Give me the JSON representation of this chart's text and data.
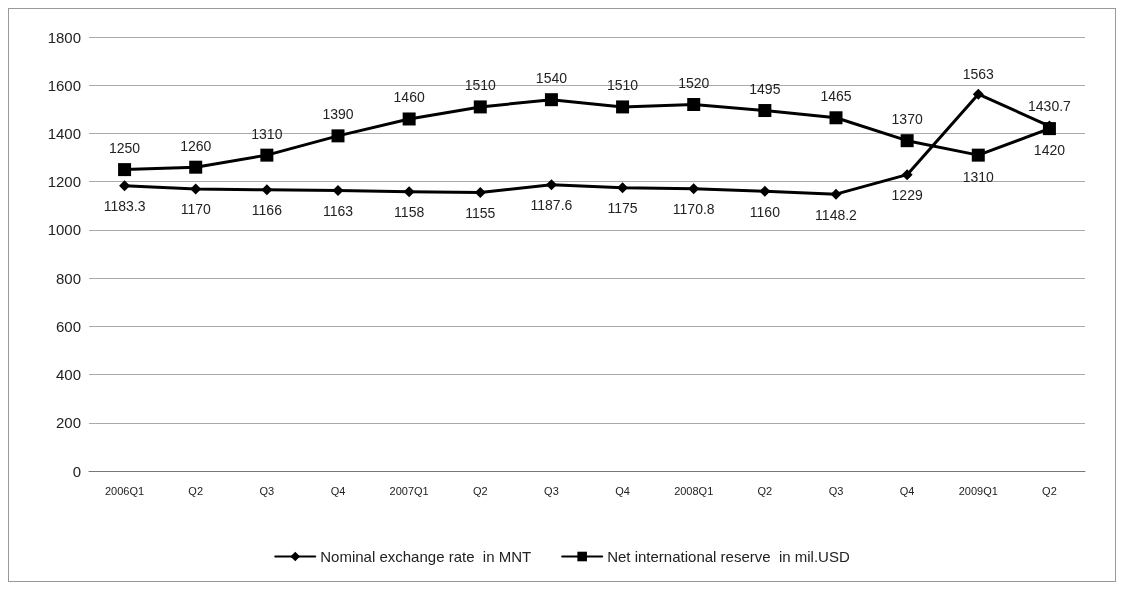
{
  "chart_data": {
    "type": "line",
    "categories": [
      "2006Q1",
      "Q2",
      "Q3",
      "Q4",
      "2007Q1",
      "Q2",
      "Q3",
      "Q4",
      "2008Q1",
      "Q2",
      "Q3",
      "Q4",
      "2009Q1",
      "Q2"
    ],
    "series": [
      {
        "name": "Nominal exchange rate  in MNT",
        "color": "#000000",
        "marker": "diamond",
        "values": [
          1183.3,
          1170,
          1166,
          1163,
          1158,
          1155,
          1187.6,
          1175,
          1170.8,
          1160,
          1148.2,
          1229,
          1563,
          1430.7
        ]
      },
      {
        "name": "Net international reserve  in mil.USD",
        "color": "#000000",
        "marker": "square",
        "values": [
          1250,
          1260,
          1310,
          1390,
          1460,
          1510,
          1540,
          1510,
          1520,
          1495,
          1465,
          1370,
          1310,
          1420
        ]
      }
    ],
    "ylim": [
      0,
      1800
    ],
    "yticks": [
      0,
      200,
      400,
      600,
      800,
      1000,
      1200,
      1400,
      1600,
      1800
    ],
    "grid": "y",
    "legend": "bottom",
    "data_labels": true,
    "line_style": "solid"
  }
}
